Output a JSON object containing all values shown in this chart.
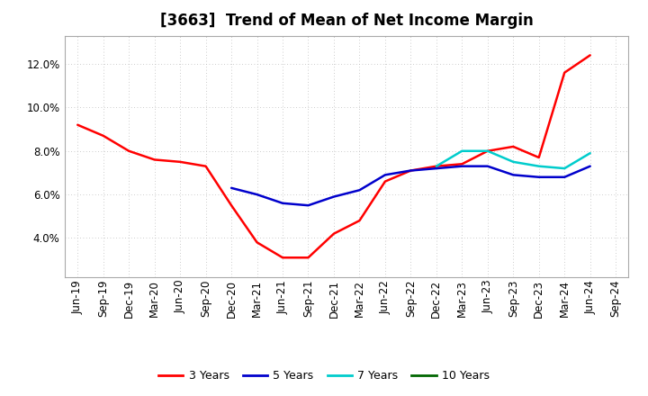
{
  "title": "[3663]  Trend of Mean of Net Income Margin",
  "x_labels": [
    "Jun-19",
    "Sep-19",
    "Dec-19",
    "Mar-20",
    "Jun-20",
    "Sep-20",
    "Dec-20",
    "Mar-21",
    "Jun-21",
    "Sep-21",
    "Dec-21",
    "Mar-22",
    "Jun-22",
    "Sep-22",
    "Dec-22",
    "Mar-23",
    "Jun-23",
    "Sep-23",
    "Dec-23",
    "Mar-24",
    "Jun-24",
    "Sep-24"
  ],
  "ylim": [
    0.022,
    0.133
  ],
  "yticks": [
    0.04,
    0.06,
    0.08,
    0.1,
    0.12
  ],
  "series": {
    "3 Years": {
      "color": "#FF0000",
      "values": [
        0.092,
        0.087,
        0.08,
        0.076,
        0.075,
        0.073,
        0.055,
        0.038,
        0.031,
        0.031,
        0.042,
        0.048,
        0.066,
        0.071,
        0.073,
        0.074,
        0.08,
        0.082,
        0.077,
        0.116,
        0.124,
        null
      ]
    },
    "5 Years": {
      "color": "#0000CC",
      "values": [
        null,
        null,
        null,
        null,
        null,
        null,
        0.063,
        0.06,
        0.056,
        0.055,
        0.059,
        0.062,
        0.069,
        0.071,
        0.072,
        0.073,
        0.073,
        0.069,
        0.068,
        0.068,
        0.073,
        null
      ]
    },
    "7 Years": {
      "color": "#00CCCC",
      "values": [
        null,
        null,
        null,
        null,
        null,
        null,
        null,
        null,
        null,
        null,
        null,
        null,
        null,
        null,
        0.073,
        0.08,
        0.08,
        0.075,
        0.073,
        0.072,
        0.079,
        null
      ]
    },
    "10 Years": {
      "color": "#006600",
      "values": [
        null,
        null,
        null,
        null,
        null,
        null,
        null,
        null,
        null,
        null,
        null,
        null,
        null,
        null,
        null,
        null,
        null,
        null,
        null,
        null,
        null,
        null
      ]
    }
  },
  "legend_order": [
    "3 Years",
    "5 Years",
    "7 Years",
    "10 Years"
  ],
  "background_color": "#FFFFFF",
  "grid_color": "#BBBBBB",
  "title_fontsize": 12,
  "tick_fontsize": 8.5,
  "legend_fontsize": 9
}
